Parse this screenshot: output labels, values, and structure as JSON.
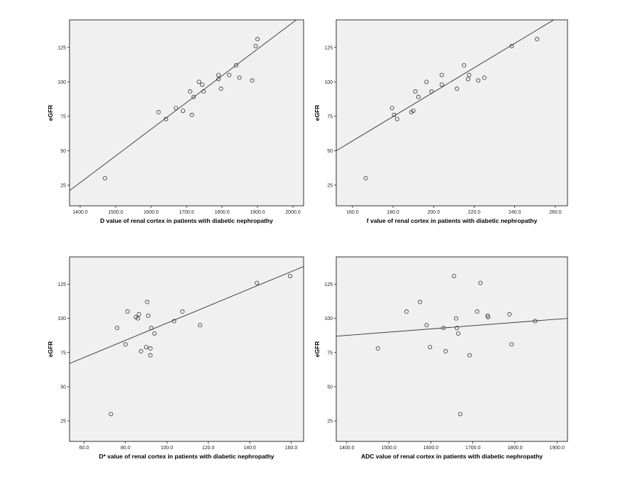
{
  "chart_data": [
    {
      "type": "scatter",
      "xlabel": "D value of renal cortex in patients with diabetic nephropathy",
      "ylabel": "eGFR",
      "xlim": [
        1370,
        2030
      ],
      "ylim": [
        10,
        145
      ],
      "xticks": [
        1400,
        1500,
        1600,
        1700,
        1800,
        1900,
        2000
      ],
      "xtick_labels": [
        "1400.0",
        "1500.0",
        "1600.0",
        "1700.0",
        "1800.0",
        "1900.0",
        "2000.0"
      ],
      "yticks": [
        25,
        50,
        75,
        100,
        125
      ],
      "ytick_labels": [
        "25",
        "50",
        "75",
        "100",
        "125"
      ],
      "points": [
        [
          1470,
          30
        ],
        [
          1621,
          78
        ],
        [
          1642,
          73
        ],
        [
          1670,
          81
        ],
        [
          1690,
          79
        ],
        [
          1710,
          93
        ],
        [
          1715,
          76
        ],
        [
          1720,
          89
        ],
        [
          1735,
          100
        ],
        [
          1744,
          98
        ],
        [
          1748,
          93
        ],
        [
          1790,
          105
        ],
        [
          1790,
          102
        ],
        [
          1797,
          95
        ],
        [
          1820,
          105
        ],
        [
          1840,
          112
        ],
        [
          1849,
          103
        ],
        [
          1885,
          101
        ],
        [
          1895,
          126
        ],
        [
          1900,
          131
        ]
      ],
      "fit_line": [
        [
          1370,
          21
        ],
        [
          2030,
          149
        ]
      ]
    },
    {
      "type": "scatter",
      "xlabel": "f value of renal cortex in patients with diabetic nephropathy",
      "ylabel": "eGFR",
      "xlim": [
        152,
        266
      ],
      "ylim": [
        10,
        145
      ],
      "xticks": [
        160,
        180,
        200,
        220,
        240,
        260
      ],
      "xtick_labels": [
        "160.0",
        "180.0",
        "200.0",
        "220.0",
        "240.0",
        "260.0"
      ],
      "yticks": [
        25,
        50,
        75,
        100,
        125
      ],
      "ytick_labels": [
        "25",
        "50",
        "75",
        "100",
        "125"
      ],
      "points": [
        [
          166.5,
          30
        ],
        [
          179.5,
          81
        ],
        [
          180.5,
          76
        ],
        [
          182,
          73
        ],
        [
          189,
          78
        ],
        [
          190,
          79
        ],
        [
          191,
          93
        ],
        [
          192.5,
          89
        ],
        [
          196.5,
          100
        ],
        [
          199,
          93
        ],
        [
          204,
          105
        ],
        [
          204,
          98
        ],
        [
          211.5,
          95
        ],
        [
          215,
          112
        ],
        [
          217,
          102
        ],
        [
          217.5,
          105
        ],
        [
          222,
          101
        ],
        [
          225,
          103
        ],
        [
          238.5,
          126
        ],
        [
          251,
          131
        ]
      ],
      "fit_line": [
        [
          152,
          50
        ],
        [
          266,
          151
        ]
      ]
    },
    {
      "type": "scatter",
      "xlabel": "D* value of renal cortex in patients with diabetic nephropathy",
      "ylabel": "eGFR",
      "xlim": [
        53,
        166
      ],
      "ylim": [
        10,
        145
      ],
      "xticks": [
        60,
        80,
        100,
        120,
        140,
        160
      ],
      "xtick_labels": [
        "60.0",
        "80.0",
        "100.0",
        "120.0",
        "140.0",
        "160.0"
      ],
      "yticks": [
        25,
        50,
        75,
        100,
        125
      ],
      "ytick_labels": [
        "25",
        "50",
        "75",
        "100",
        "125"
      ],
      "points": [
        [
          73,
          30
        ],
        [
          76,
          93
        ],
        [
          80,
          81
        ],
        [
          81,
          105
        ],
        [
          85,
          101
        ],
        [
          86,
          100
        ],
        [
          86.5,
          103
        ],
        [
          87.5,
          76
        ],
        [
          90,
          79
        ],
        [
          90.5,
          112
        ],
        [
          91,
          102
        ],
        [
          92,
          73
        ],
        [
          92,
          78
        ],
        [
          92.5,
          93
        ],
        [
          94,
          89
        ],
        [
          103.5,
          98
        ],
        [
          107.5,
          105
        ],
        [
          116,
          95
        ],
        [
          143.5,
          126
        ],
        [
          159.5,
          131
        ]
      ],
      "fit_line": [
        [
          53,
          67
        ],
        [
          166,
          138
        ]
      ]
    },
    {
      "type": "scatter",
      "xlabel": "ADC value of renal cortex in patients with diabetic nephropathy",
      "ylabel": "eGFR",
      "xlim": [
        1375,
        1925
      ],
      "ylim": [
        10,
        145
      ],
      "xticks": [
        1400,
        1500,
        1600,
        1700,
        1800,
        1900
      ],
      "xtick_labels": [
        "1400.0",
        "1500.0",
        "1600.0",
        "1700.0",
        "1800.0",
        "1900.0"
      ],
      "yticks": [
        25,
        50,
        75,
        100,
        125
      ],
      "ytick_labels": [
        "25",
        "50",
        "75",
        "100",
        "125"
      ],
      "points": [
        [
          1474,
          78
        ],
        [
          1542,
          105
        ],
        [
          1574,
          112
        ],
        [
          1590,
          95
        ],
        [
          1598,
          79
        ],
        [
          1630,
          93
        ],
        [
          1635,
          76
        ],
        [
          1655,
          131
        ],
        [
          1660,
          100
        ],
        [
          1662,
          93
        ],
        [
          1665,
          89
        ],
        [
          1670,
          30
        ],
        [
          1692,
          73
        ],
        [
          1710,
          105
        ],
        [
          1718,
          126
        ],
        [
          1735,
          102
        ],
        [
          1736,
          101
        ],
        [
          1787,
          103
        ],
        [
          1792,
          81
        ],
        [
          1848,
          98
        ]
      ],
      "fit_line": [
        [
          1375,
          87
        ],
        [
          1925,
          100
        ]
      ]
    }
  ]
}
